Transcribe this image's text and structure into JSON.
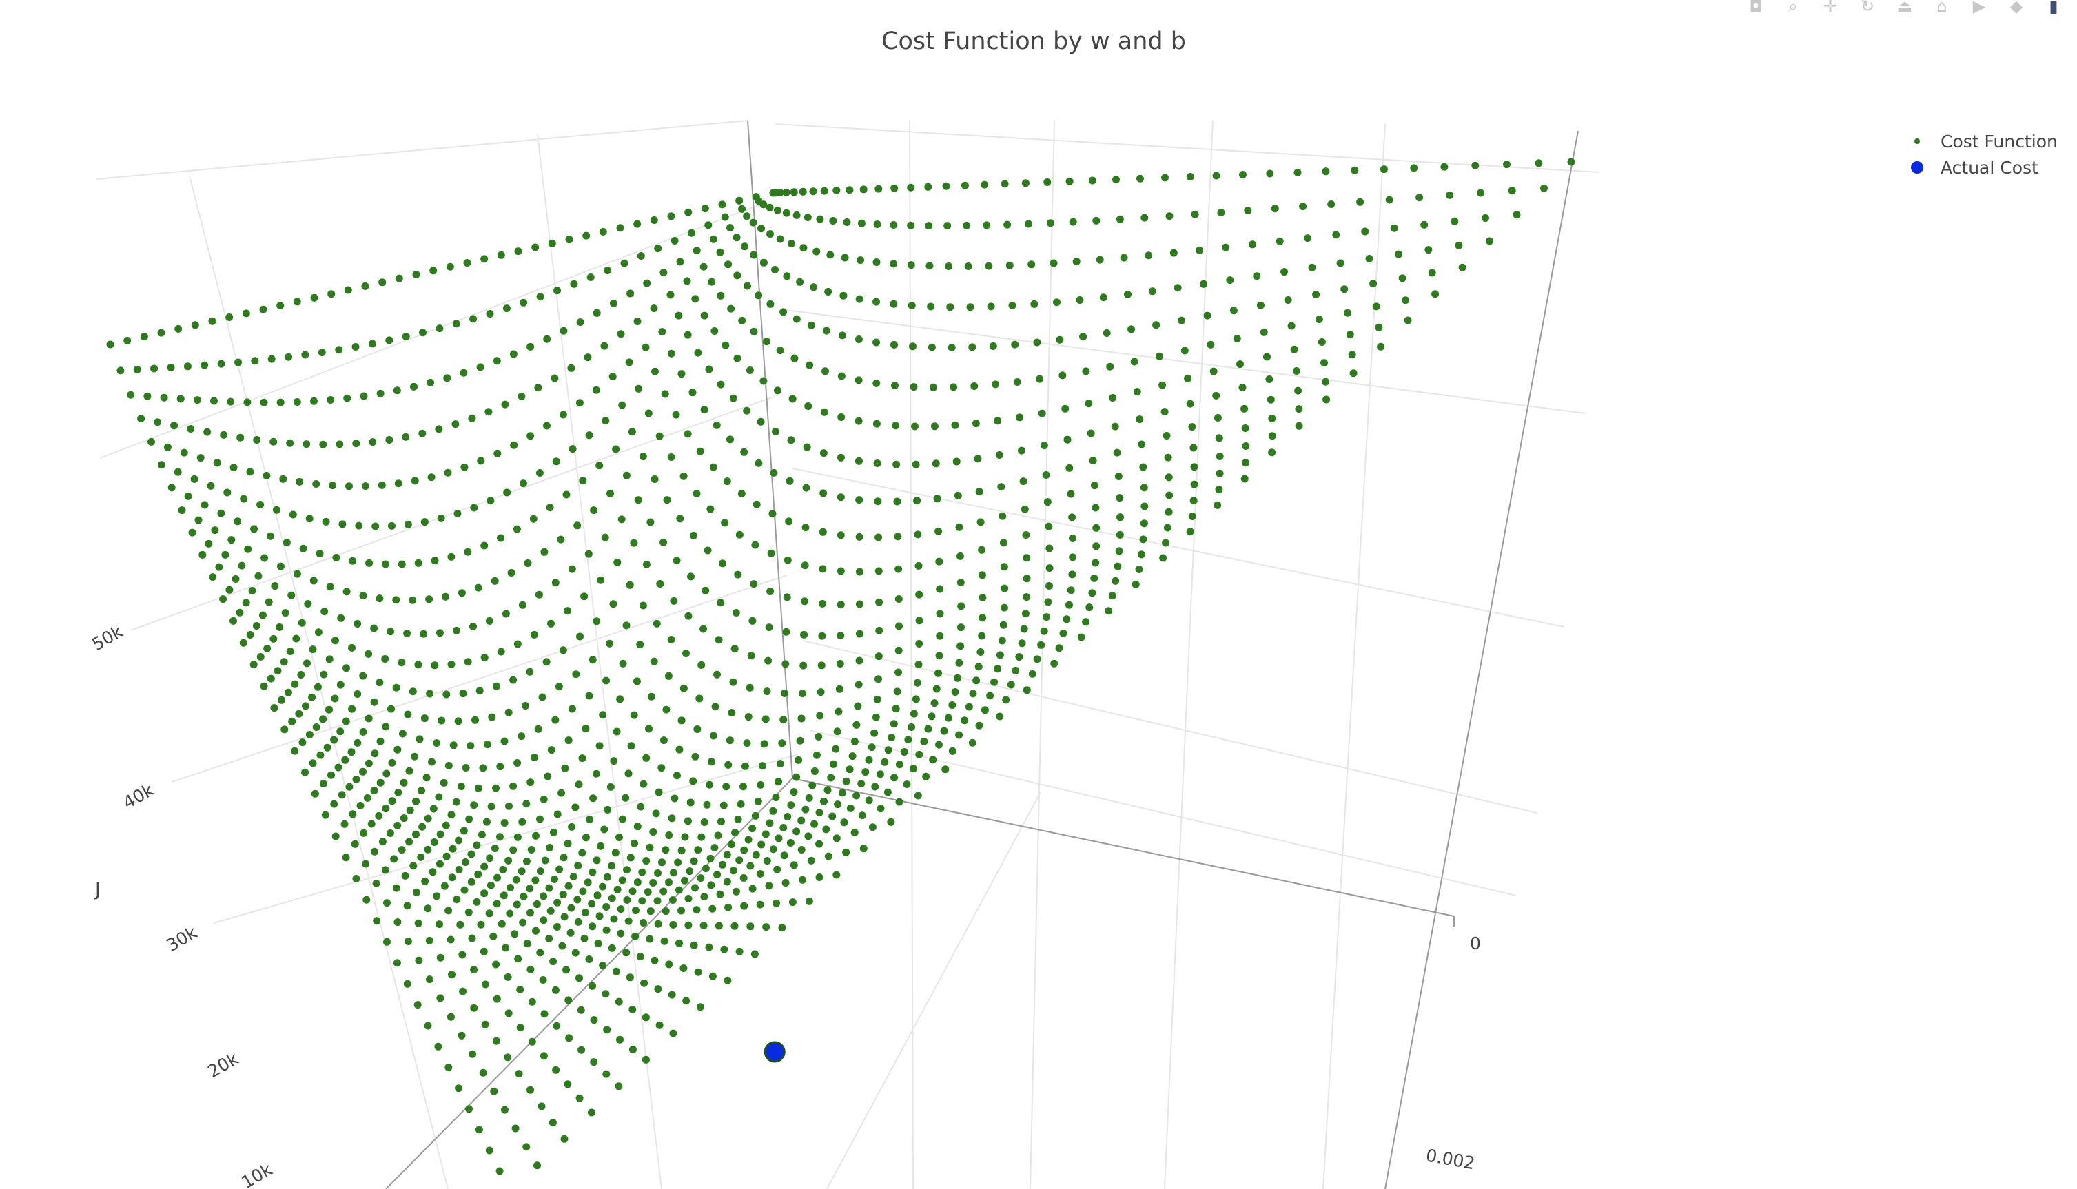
{
  "toolbar": {
    "buttons": [
      {
        "name": "camera-icon",
        "glyph": "◘"
      },
      {
        "name": "zoom-icon",
        "glyph": "⌕"
      },
      {
        "name": "pan-icon",
        "glyph": "✛"
      },
      {
        "name": "orbit-rotation-icon",
        "glyph": "↻"
      },
      {
        "name": "turntable-rotation-icon",
        "glyph": "⏏"
      },
      {
        "name": "home-icon",
        "glyph": "⌂"
      },
      {
        "name": "video-camera-icon",
        "glyph": "▶"
      },
      {
        "name": "hover-icon",
        "glyph": "◆"
      },
      {
        "name": "plotly-logo-icon",
        "glyph": "▮"
      }
    ]
  },
  "chart_data": {
    "type": "scatter3d",
    "title": "Cost Function by w and b",
    "z_axis": {
      "label": "J",
      "range": [
        0,
        55000
      ],
      "ticks": [
        "10k",
        "20k",
        "30k",
        "40k",
        "50k"
      ]
    },
    "w_axis": {
      "ticks": [
        "0",
        "0.002"
      ]
    },
    "grid": true,
    "legend_position": "top-right",
    "colors": {
      "cost_function": "#2f7a1f",
      "actual_cost": "#0a2ae0",
      "grid": "#e6e6e6",
      "axis_line": "#9a9a9a"
    },
    "series": [
      {
        "name": "Cost Function",
        "kind": "surface-grid",
        "grid_rows": 40,
        "grid_cols": 40,
        "rows": [
          {
            "index": 0,
            "points": [
              [
                0.0,
                52000
              ],
              [
                0.25,
                52600
              ],
              [
                0.5,
                53400
              ],
              [
                0.75,
                54300
              ],
              [
                1.0,
                55000
              ]
            ]
          },
          {
            "index": 39,
            "points": [
              [
                0.0,
                1500
              ],
              [
                0.15,
                1200
              ],
              [
                0.4,
                200
              ],
              [
                0.7,
                2000
              ],
              [
                1.0,
                52000
              ]
            ]
          }
        ]
      },
      {
        "name": "Actual Cost",
        "kind": "marker",
        "position": {
          "row": 0.0,
          "col": 0.46
        },
        "z": 1800
      }
    ]
  }
}
